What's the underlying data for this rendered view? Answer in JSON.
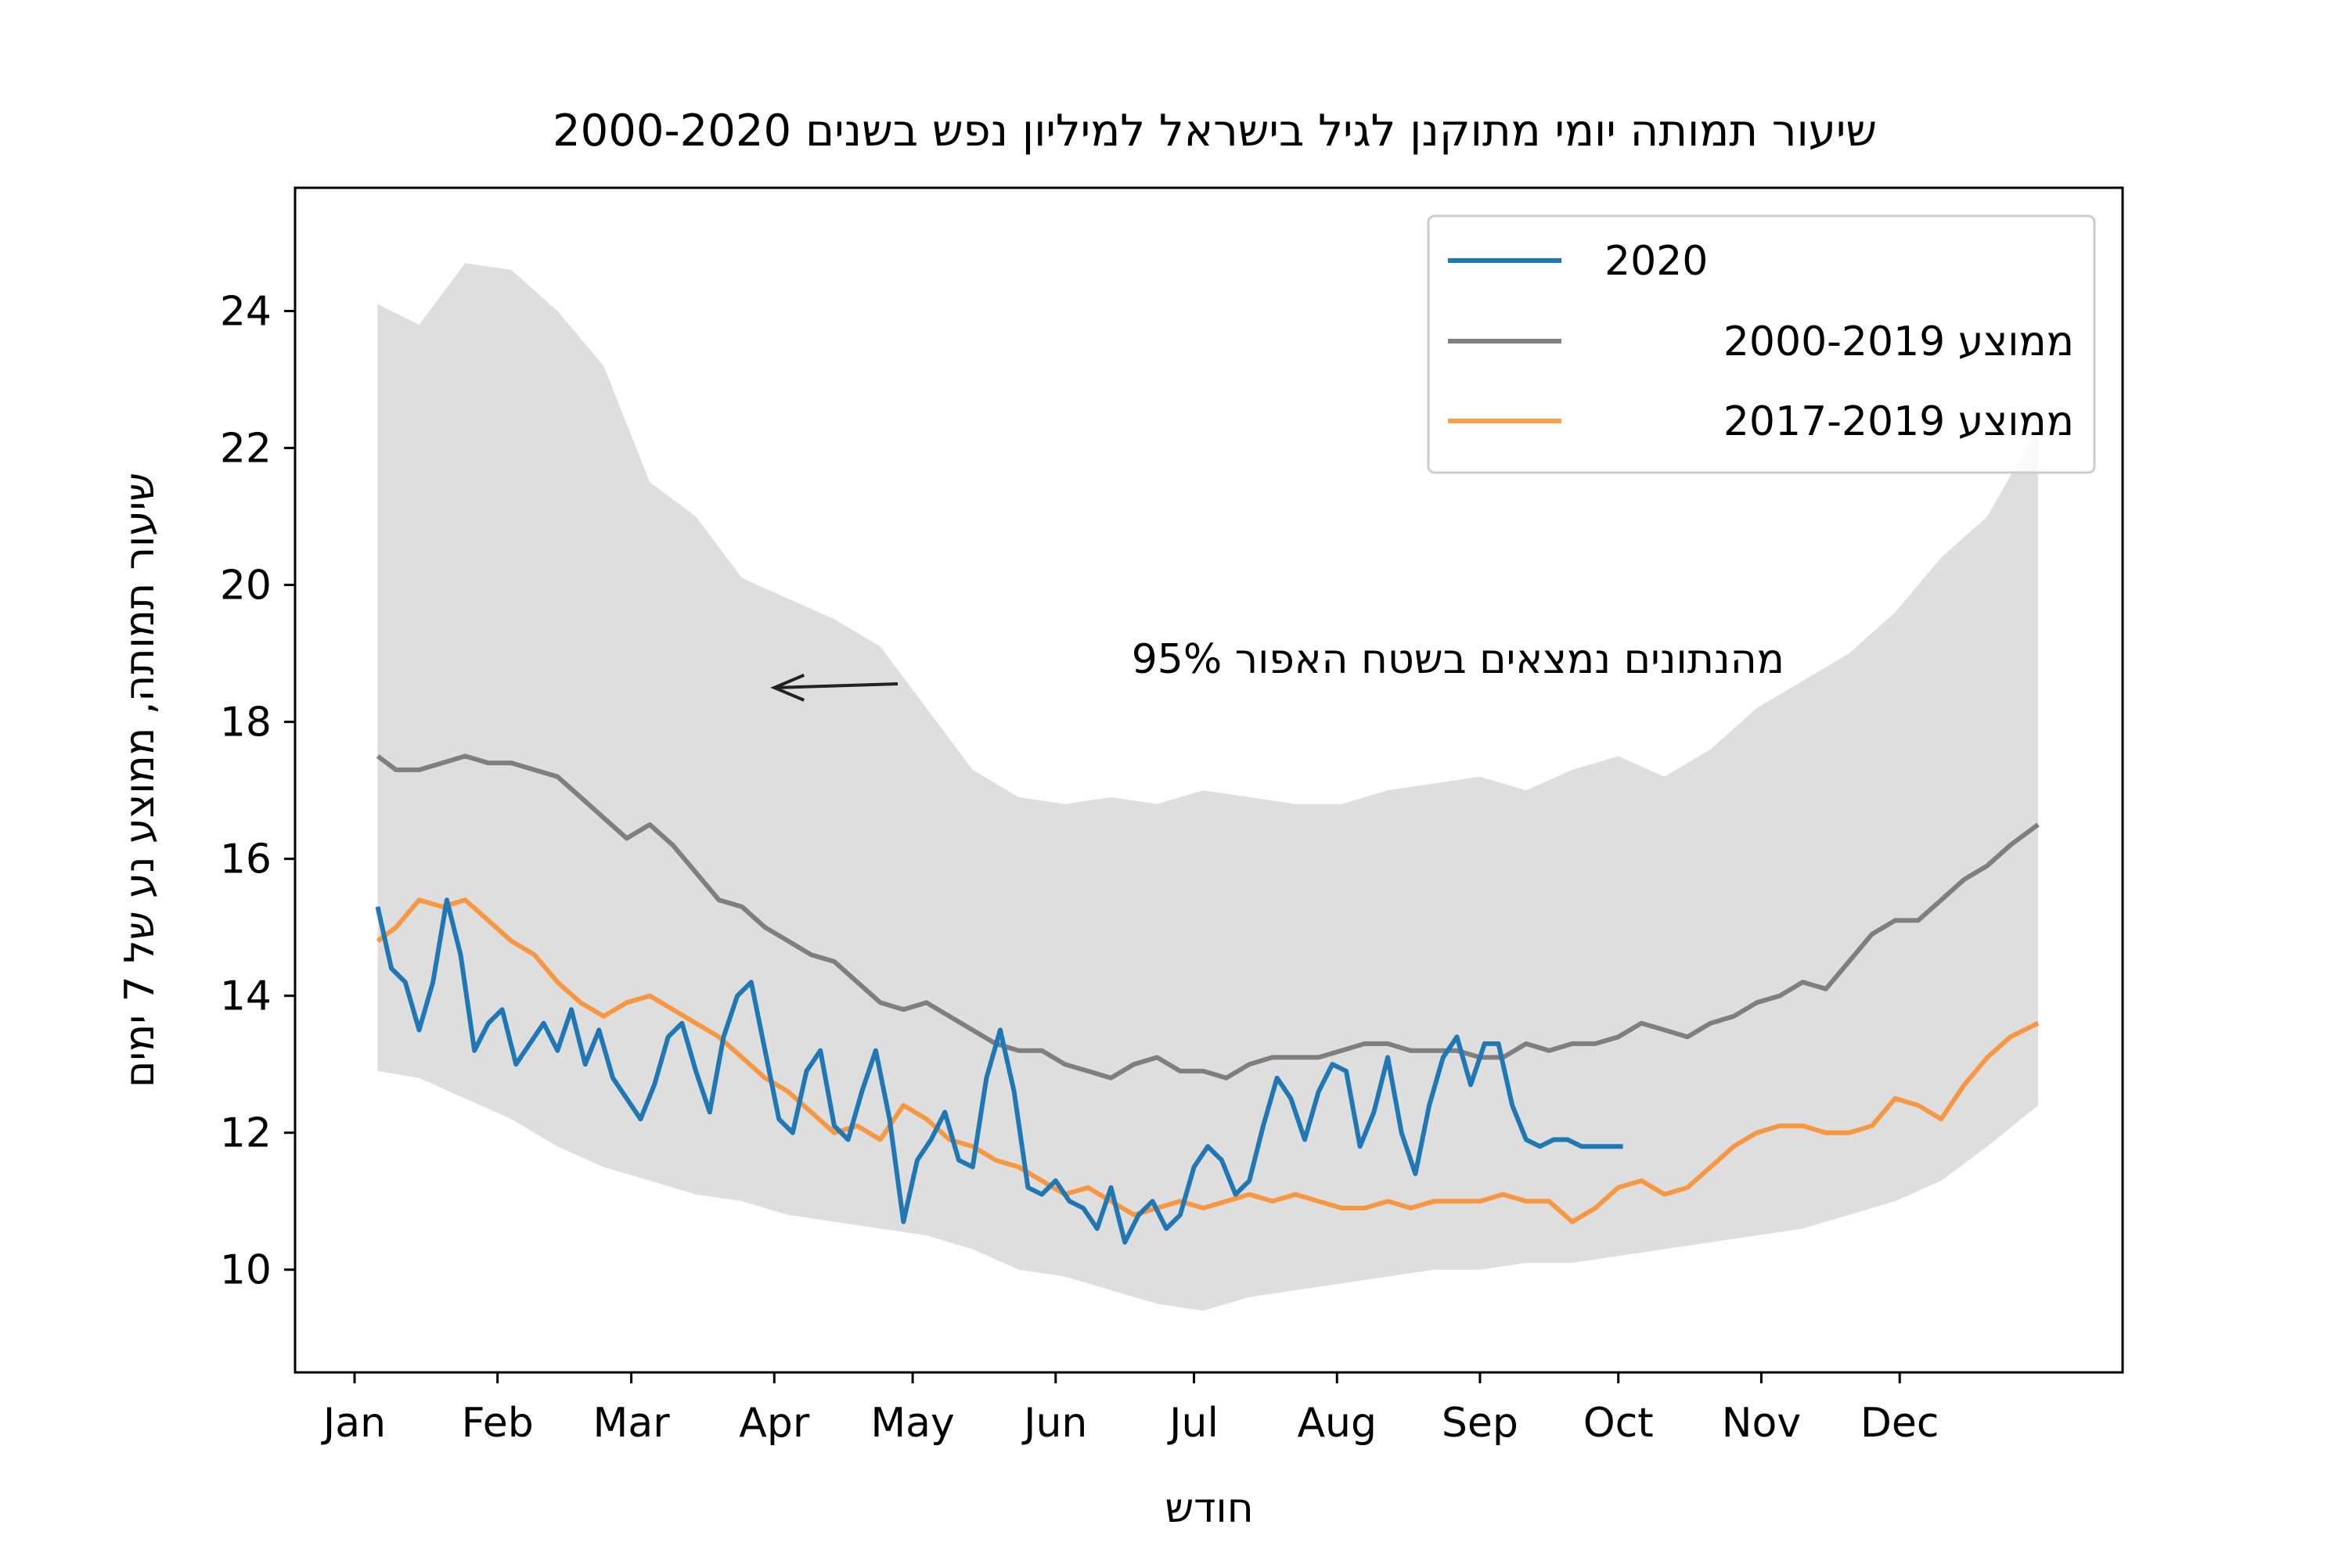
{
  "chart_data": {
    "type": "line",
    "title": "שיעור תמותה יומי מתוקנן לגיל בישראל למיליון נפש בשנים 2000-2020",
    "xlabel": "חודש",
    "ylabel": "שיעור תמותה, ממוצע נע של 7 ימים",
    "x_unit": "day of year",
    "xlim": [
      1,
      366
    ],
    "ylim": [
      8.5,
      25.8
    ],
    "yticks": [
      10,
      12,
      14,
      16,
      18,
      20,
      22,
      24
    ],
    "xticks": [
      {
        "label": "Jan",
        "day": 1
      },
      {
        "label": "Feb",
        "day": 32
      },
      {
        "label": "Mar",
        "day": 61
      },
      {
        "label": "Apr",
        "day": 92
      },
      {
        "label": "May",
        "day": 122
      },
      {
        "label": "Jun",
        "day": 153
      },
      {
        "label": "Jul",
        "day": 183
      },
      {
        "label": "Aug",
        "day": 214
      },
      {
        "label": "Sep",
        "day": 245
      },
      {
        "label": "Oct",
        "day": 275
      },
      {
        "label": "Nov",
        "day": 306
      },
      {
        "label": "Dec",
        "day": 336
      }
    ],
    "grid": false,
    "legend_position": "top-right",
    "annotation": {
      "text": "95% מהנתונים נמצאים בשטח האפור",
      "arrow_to_day": 92,
      "arrow_to_value": 18.5
    },
    "band": {
      "name": "95%",
      "color": "#dedede",
      "x": [
        6,
        15,
        25,
        35,
        45,
        55,
        65,
        75,
        85,
        95,
        105,
        115,
        125,
        135,
        145,
        155,
        165,
        175,
        185,
        195,
        205,
        215,
        225,
        235,
        245,
        255,
        265,
        275,
        285,
        295,
        305,
        315,
        325,
        335,
        345,
        355,
        366
      ],
      "upper": [
        24.1,
        23.8,
        24.7,
        24.6,
        24.0,
        23.2,
        21.5,
        21.0,
        20.1,
        19.8,
        19.5,
        19.1,
        18.2,
        17.3,
        16.9,
        16.8,
        16.9,
        16.8,
        17.0,
        16.9,
        16.8,
        16.8,
        17.0,
        17.1,
        17.2,
        17.0,
        17.3,
        17.5,
        17.2,
        17.6,
        18.2,
        18.6,
        19.0,
        19.6,
        20.4,
        21.0,
        22.3
      ],
      "lower": [
        12.9,
        12.8,
        12.5,
        12.2,
        11.8,
        11.5,
        11.3,
        11.1,
        11.0,
        10.8,
        10.7,
        10.6,
        10.5,
        10.3,
        10.0,
        9.9,
        9.7,
        9.5,
        9.4,
        9.6,
        9.7,
        9.8,
        9.9,
        10.0,
        10.0,
        10.1,
        10.1,
        10.2,
        10.3,
        10.4,
        10.5,
        10.6,
        10.8,
        11.0,
        11.3,
        11.8,
        12.4
      ]
    },
    "series": [
      {
        "name": "2020",
        "color": "#1f77b4",
        "x": [
          6,
          9,
          12,
          15,
          18,
          21,
          24,
          27,
          30,
          33,
          36,
          39,
          42,
          45,
          48,
          51,
          54,
          57,
          60,
          63,
          66,
          69,
          72,
          75,
          78,
          81,
          84,
          87,
          90,
          93,
          96,
          99,
          102,
          105,
          108,
          111,
          114,
          117,
          120,
          123,
          126,
          129,
          132,
          135,
          138,
          141,
          144,
          147,
          150,
          153,
          156,
          159,
          162,
          165,
          168,
          171,
          174,
          177,
          180,
          183,
          186,
          189,
          192,
          195,
          198,
          201,
          204,
          207,
          210,
          213,
          216,
          219,
          222,
          225,
          228,
          231,
          234,
          237,
          240,
          243,
          246,
          249,
          252,
          255,
          258,
          261,
          264,
          267,
          270,
          273,
          276
        ],
        "values": [
          15.3,
          14.4,
          14.2,
          13.5,
          14.2,
          15.4,
          14.6,
          13.2,
          13.6,
          13.8,
          13.0,
          13.3,
          13.6,
          13.2,
          13.8,
          13.0,
          13.5,
          12.8,
          12.5,
          12.2,
          12.7,
          13.4,
          13.6,
          12.9,
          12.3,
          13.4,
          14.0,
          14.2,
          13.2,
          12.2,
          12.0,
          12.9,
          13.2,
          12.1,
          11.9,
          12.6,
          13.2,
          12.2,
          10.7,
          11.6,
          11.9,
          12.3,
          11.6,
          11.5,
          12.8,
          13.5,
          12.6,
          11.2,
          11.1,
          11.3,
          11.0,
          10.9,
          10.6,
          11.2,
          10.4,
          10.8,
          11.0,
          10.6,
          10.8,
          11.5,
          11.8,
          11.6,
          11.1,
          11.3,
          12.1,
          12.8,
          12.5,
          11.9,
          12.6,
          13.0,
          12.9,
          11.8,
          12.3,
          13.1,
          12.0,
          11.4,
          12.4,
          13.1,
          13.4,
          12.7,
          13.3,
          13.3,
          12.4,
          11.9,
          11.8,
          11.9,
          11.9,
          11.8,
          11.8,
          11.8,
          11.8
        ]
      },
      {
        "name": "ממוצע 2000-2019",
        "color": "#7f7f7f",
        "x": [
          6,
          10,
          15,
          20,
          25,
          30,
          35,
          40,
          45,
          50,
          55,
          60,
          65,
          70,
          75,
          80,
          85,
          90,
          95,
          100,
          105,
          110,
          115,
          120,
          125,
          130,
          135,
          140,
          145,
          150,
          155,
          160,
          165,
          170,
          175,
          180,
          185,
          190,
          195,
          200,
          205,
          210,
          215,
          220,
          225,
          230,
          235,
          240,
          245,
          250,
          255,
          260,
          265,
          270,
          275,
          280,
          285,
          290,
          295,
          300,
          305,
          310,
          315,
          320,
          325,
          330,
          335,
          340,
          345,
          350,
          355,
          360,
          366
        ],
        "values": [
          17.5,
          17.3,
          17.3,
          17.4,
          17.5,
          17.4,
          17.4,
          17.3,
          17.2,
          16.9,
          16.6,
          16.3,
          16.5,
          16.2,
          15.8,
          15.4,
          15.3,
          15.0,
          14.8,
          14.6,
          14.5,
          14.2,
          13.9,
          13.8,
          13.9,
          13.7,
          13.5,
          13.3,
          13.2,
          13.2,
          13.0,
          12.9,
          12.8,
          13.0,
          13.1,
          12.9,
          12.9,
          12.8,
          13.0,
          13.1,
          13.1,
          13.1,
          13.2,
          13.3,
          13.3,
          13.2,
          13.2,
          13.2,
          13.1,
          13.1,
          13.3,
          13.2,
          13.3,
          13.3,
          13.4,
          13.6,
          13.5,
          13.4,
          13.6,
          13.7,
          13.9,
          14.0,
          14.2,
          14.1,
          14.5,
          14.9,
          15.1,
          15.1,
          15.4,
          15.7,
          15.9,
          16.2,
          16.5
        ]
      },
      {
        "name": "ממוצע 2017-2019",
        "color": "#ff7f0e",
        "x": [
          6,
          10,
          15,
          20,
          25,
          30,
          35,
          40,
          45,
          50,
          55,
          60,
          65,
          70,
          75,
          80,
          85,
          90,
          95,
          100,
          105,
          110,
          115,
          120,
          125,
          130,
          135,
          140,
          145,
          150,
          155,
          160,
          165,
          170,
          175,
          180,
          185,
          190,
          195,
          200,
          205,
          210,
          215,
          220,
          225,
          230,
          235,
          240,
          245,
          250,
          255,
          260,
          265,
          270,
          275,
          280,
          285,
          290,
          295,
          300,
          305,
          310,
          315,
          320,
          325,
          330,
          335,
          340,
          345,
          350,
          355,
          360,
          366
        ],
        "values": [
          14.8,
          15.0,
          15.4,
          15.3,
          15.4,
          15.1,
          14.8,
          14.6,
          14.2,
          13.9,
          13.7,
          13.9,
          14.0,
          13.8,
          13.6,
          13.4,
          13.1,
          12.8,
          12.6,
          12.3,
          12.0,
          12.1,
          11.9,
          12.4,
          12.2,
          11.9,
          11.8,
          11.6,
          11.5,
          11.3,
          11.1,
          11.2,
          11.0,
          10.8,
          10.9,
          11.0,
          10.9,
          11.0,
          11.1,
          11.0,
          11.1,
          11.0,
          10.9,
          10.9,
          11.0,
          10.9,
          11.0,
          11.0,
          11.0,
          11.1,
          11.0,
          11.0,
          10.7,
          10.9,
          11.2,
          11.3,
          11.1,
          11.2,
          11.5,
          11.8,
          12.0,
          12.1,
          12.1,
          12.0,
          12.0,
          12.1,
          12.5,
          12.4,
          12.2,
          12.7,
          13.1,
          13.4,
          13.6
        ]
      }
    ]
  }
}
